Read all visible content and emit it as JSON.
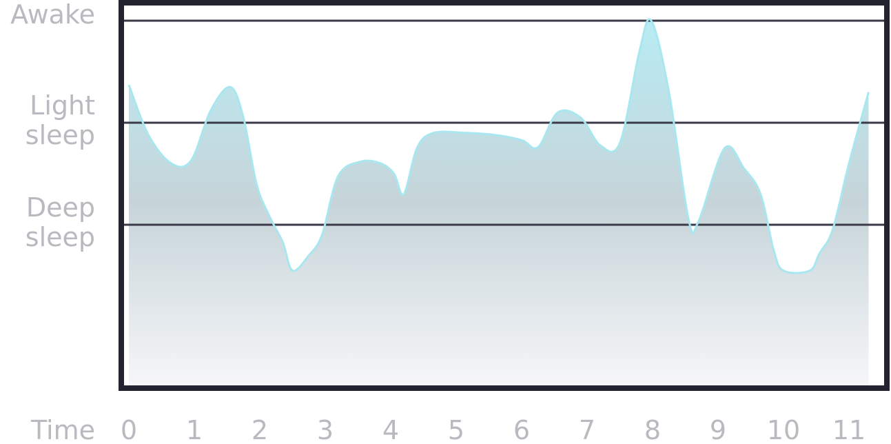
{
  "chart_data": {
    "type": "area",
    "title": "",
    "xlabel": "Time",
    "ylabel": "",
    "xlim": [
      0,
      11
    ],
    "x_ticks": [
      "0",
      "1",
      "2",
      "3",
      "4",
      "5",
      "6",
      "7",
      "8",
      "9",
      "10",
      "11"
    ],
    "y_levels": [
      {
        "name": "Awake",
        "lines": [
          "Awake"
        ],
        "value": 3
      },
      {
        "name": "Light sleep",
        "lines": [
          "Light",
          "sleep"
        ],
        "value": 2
      },
      {
        "name": "Deep sleep",
        "lines": [
          "Deep",
          "sleep"
        ],
        "value": 1
      }
    ],
    "ylim": [
      -0.5,
      3.15
    ],
    "grid": "horizontal lines at each level",
    "series": [
      {
        "color": "#a8e7ef",
        "points": [
          [
            0.0,
            2.37
          ],
          [
            0.3,
            1.88
          ],
          [
            0.65,
            1.6
          ],
          [
            0.95,
            1.63
          ],
          [
            1.25,
            2.12
          ],
          [
            1.55,
            2.35
          ],
          [
            1.75,
            2.05
          ],
          [
            1.95,
            1.4
          ],
          [
            2.15,
            1.08
          ],
          [
            2.35,
            0.83
          ],
          [
            2.5,
            0.55
          ],
          [
            2.75,
            0.7
          ],
          [
            2.95,
            0.9
          ],
          [
            3.2,
            1.48
          ],
          [
            3.55,
            1.62
          ],
          [
            3.85,
            1.6
          ],
          [
            4.05,
            1.5
          ],
          [
            4.2,
            1.3
          ],
          [
            4.4,
            1.75
          ],
          [
            4.65,
            1.9
          ],
          [
            5.15,
            1.9
          ],
          [
            5.6,
            1.88
          ],
          [
            6.0,
            1.83
          ],
          [
            6.25,
            1.76
          ],
          [
            6.55,
            2.1
          ],
          [
            6.9,
            2.05
          ],
          [
            7.2,
            1.78
          ],
          [
            7.5,
            1.8
          ],
          [
            7.8,
            2.7
          ],
          [
            7.98,
            3.0
          ],
          [
            8.25,
            2.3
          ],
          [
            8.55,
            1.05
          ],
          [
            8.7,
            1.03
          ],
          [
            9.1,
            1.75
          ],
          [
            9.4,
            1.55
          ],
          [
            9.65,
            1.3
          ],
          [
            9.85,
            0.75
          ],
          [
            10.0,
            0.55
          ],
          [
            10.4,
            0.55
          ],
          [
            10.55,
            0.72
          ],
          [
            10.75,
            0.95
          ],
          [
            11.0,
            1.6
          ],
          [
            11.3,
            2.3
          ]
        ]
      }
    ]
  }
}
